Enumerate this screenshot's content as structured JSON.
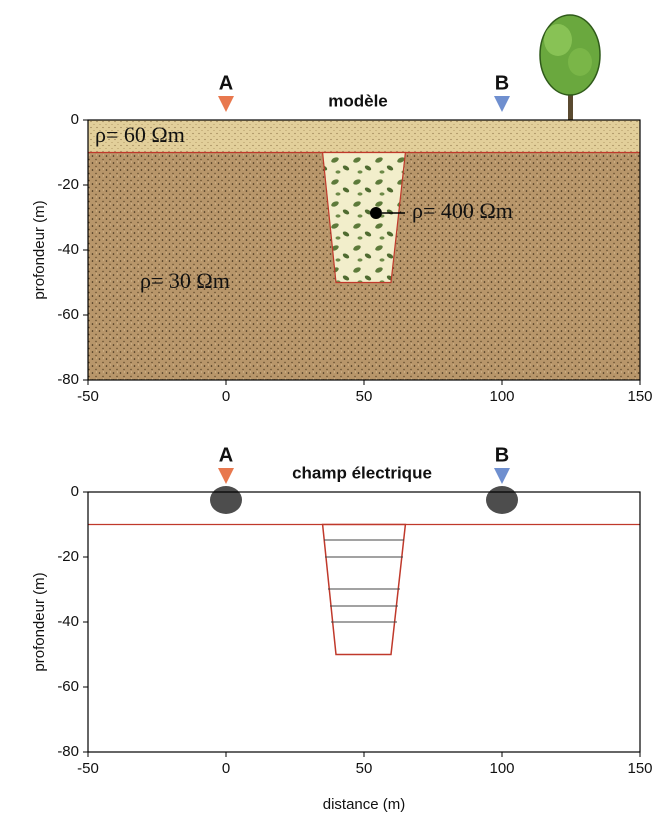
{
  "panels": [
    {
      "title": "modèle",
      "ylabel": "profondeur (m)",
      "xlim": [
        -50,
        150
      ],
      "ylim": [
        -80,
        0
      ],
      "xticks": [
        -50,
        0,
        50,
        100,
        150
      ],
      "yticks": [
        0,
        -20,
        -40,
        -60,
        -80
      ],
      "electrodes": [
        "A",
        "B"
      ],
      "annotations": [
        "ρ= 60 Ωm",
        "ρ= 400 Ωm",
        "ρ= 30 Ωm"
      ]
    },
    {
      "title": "champ électrique",
      "ylabel": "profondeur (m)",
      "xlabel": "distance (m)",
      "xlim": [
        -50,
        150
      ],
      "ylim": [
        -80,
        0
      ],
      "xticks": [
        -50,
        0,
        50,
        100,
        150
      ],
      "yticks": [
        0,
        -20,
        -40,
        -60,
        -80
      ],
      "electrodes": [
        "A",
        "B"
      ]
    }
  ]
}
